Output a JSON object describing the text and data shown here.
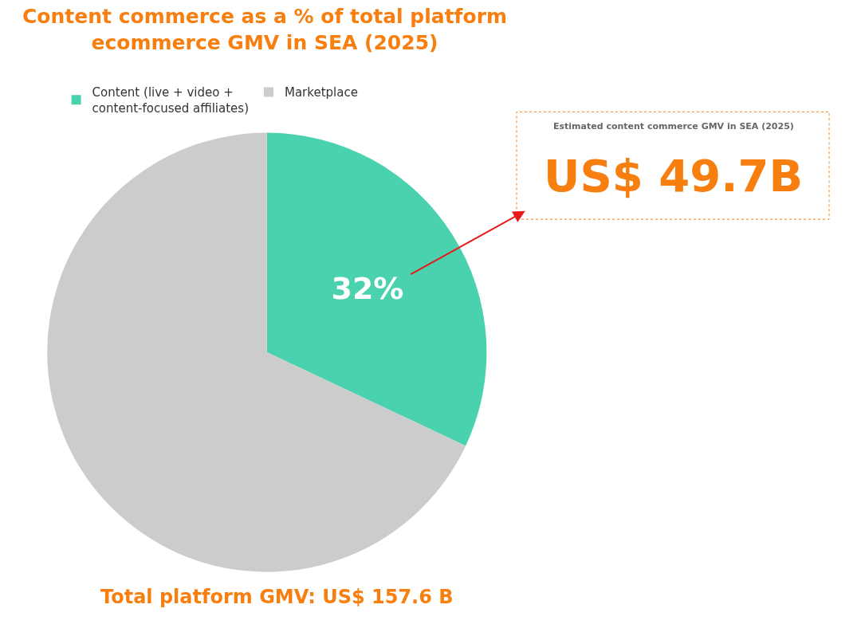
{
  "chart_data": {
    "type": "pie",
    "title": "Content commerce as a % of total platform\necommerce GMV in SEA (2025)",
    "categories": [
      "Content (live + video +\ncontent-focused affiliates)",
      "Marketplace"
    ],
    "values": [
      32,
      68
    ],
    "value_labels": [
      "32%",
      null
    ],
    "colors": [
      "#4ad1ae",
      "#cccccc"
    ],
    "legend": "top",
    "annotations": [
      "Estimated content commerce GMV in SEA (2025)",
      "US$ 49.7B",
      "Total platform GMV: US$ 157.6 B"
    ]
  }
}
